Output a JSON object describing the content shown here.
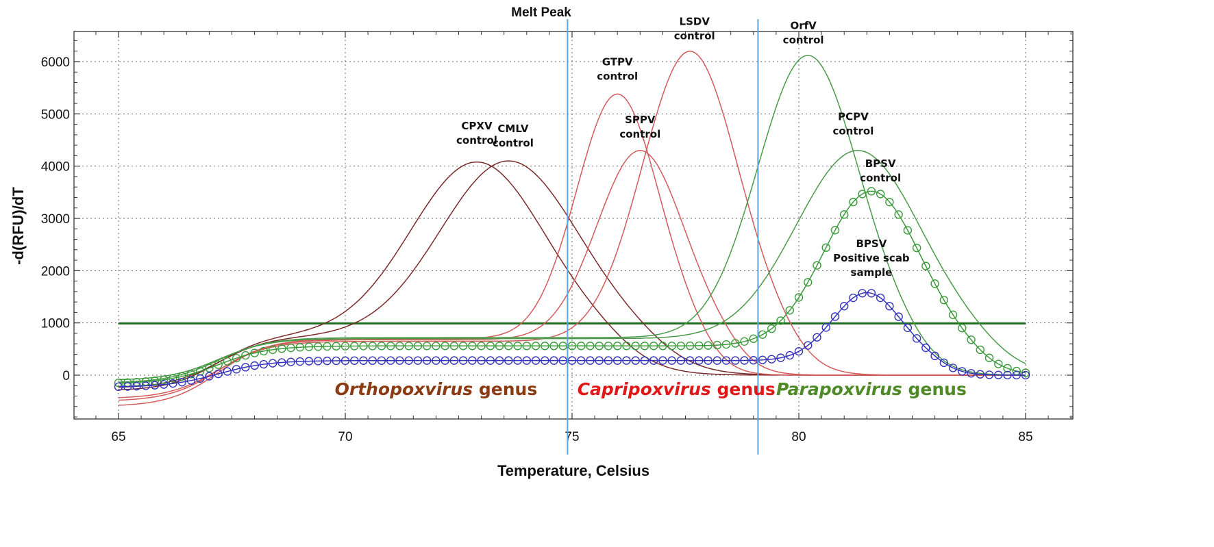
{
  "chart_data": {
    "type": "line",
    "title": "Melt Peak",
    "xlabel": "Temperature, Celsius",
    "ylabel": "-d(RFU)/dT",
    "xlim": [
      64.5,
      86.1
    ],
    "ylim": [
      -850,
      6650
    ],
    "xticks": [
      65,
      70,
      75,
      80,
      85
    ],
    "yticks": [
      0,
      1000,
      2000,
      3000,
      4000,
      5000,
      6000
    ],
    "grid": "dotted",
    "threshold": {
      "value": 990,
      "x_start": 65,
      "x_end": 85,
      "color": "#1e6a1e"
    },
    "genus_boundaries": [
      74.9,
      79.1
    ],
    "series": [
      {
        "name": "CPXV control",
        "peak_x": 72.9,
        "peak_y": 4080,
        "width": 1.45,
        "plateau": 780,
        "start_y": -300,
        "color": "#7b2a2a",
        "marker": "none"
      },
      {
        "name": "CMLV control",
        "peak_x": 73.6,
        "peak_y": 4100,
        "width": 1.5,
        "plateau": 740,
        "start_y": -250,
        "color": "#7b2a2a",
        "marker": "none"
      },
      {
        "name": "GTPV control",
        "peak_x": 76.0,
        "peak_y": 5380,
        "width": 0.9,
        "plateau": 700,
        "start_y": -600,
        "color": "#d45a5a",
        "marker": "none"
      },
      {
        "name": "SPPV control",
        "peak_x": 76.5,
        "peak_y": 4300,
        "width": 0.95,
        "plateau": 680,
        "start_y": -500,
        "color": "#d45a5a",
        "marker": "none"
      },
      {
        "name": "LSDV control",
        "peak_x": 77.6,
        "peak_y": 6200,
        "width": 1.05,
        "plateau": 650,
        "start_y": -450,
        "color": "#d45a5a",
        "marker": "none"
      },
      {
        "name": "OrfV control",
        "peak_x": 80.2,
        "peak_y": 6120,
        "width": 1.1,
        "plateau": 720,
        "start_y": -150,
        "color": "#4a9a4a",
        "marker": "none"
      },
      {
        "name": "PCPV control",
        "peak_x": 81.3,
        "peak_y": 4300,
        "width": 1.35,
        "plateau": 700,
        "start_y": -100,
        "color": "#4a9a4a",
        "marker": "none"
      },
      {
        "name": "BPSV control",
        "peak_x": 81.6,
        "peak_y": 3520,
        "width": 1.05,
        "plateau": 560,
        "start_y": -160,
        "color": "#3a9a3a",
        "marker": "circle"
      },
      {
        "name": "BPSV Positive scab sample",
        "peak_x": 81.5,
        "peak_y": 1580,
        "width": 0.75,
        "plateau": 280,
        "start_y": -230,
        "color": "#3333bb",
        "marker": "circle"
      }
    ],
    "annotations": [
      {
        "lines": [
          "CPXV",
          "control"
        ],
        "x": 72.9,
        "y": 4700
      },
      {
        "lines": [
          "CMLV",
          "control"
        ],
        "x": 73.7,
        "y": 4650
      },
      {
        "lines": [
          "GTPV",
          "control"
        ],
        "x": 76.0,
        "y": 5930
      },
      {
        "lines": [
          "SPPV",
          "control"
        ],
        "x": 76.5,
        "y": 4820
      },
      {
        "lines": [
          "LSDV",
          "control"
        ],
        "x": 77.7,
        "y": 6700
      },
      {
        "lines": [
          "OrfV",
          "control"
        ],
        "x": 80.1,
        "y": 6620
      },
      {
        "lines": [
          "PCPV",
          "control"
        ],
        "x": 81.2,
        "y": 4880
      },
      {
        "lines": [
          "BPSV",
          "control"
        ],
        "x": 81.8,
        "y": 3980
      },
      {
        "lines": [
          "BPSV",
          "Positive scab",
          "sample"
        ],
        "x": 81.6,
        "y": 2450
      }
    ],
    "genus_labels": [
      {
        "name": "Orthopoxvirus",
        "suffix": "genus",
        "x": 72.0,
        "y": -380,
        "color": "#8b3a12"
      },
      {
        "name": "Capripoxvirus",
        "suffix": "genus",
        "x": 77.3,
        "y": -380,
        "color": "#e01818"
      },
      {
        "name": "Parapoxvirus",
        "suffix": "genus",
        "x": 81.6,
        "y": -380,
        "color": "#4e8a26"
      }
    ]
  }
}
